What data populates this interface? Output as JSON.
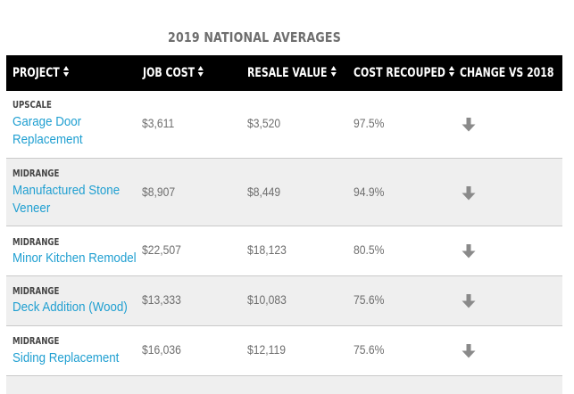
{
  "title": "2019 NATIONAL AVERAGES",
  "columns": [
    {
      "label": "PROJECT",
      "icon": "sort-icon"
    },
    {
      "label": "JOB COST",
      "icon": "sort-icon"
    },
    {
      "label": "RESALE VALUE",
      "icon": "sort-icon"
    },
    {
      "label": "COST RECOUPED",
      "icon": "sort-icon"
    },
    {
      "label": "CHANGE VS 2018"
    }
  ],
  "rows": [
    {
      "tier": "UPSCALE",
      "project": "Garage Door Replacement",
      "job_cost": "$3,611",
      "resale_value": "$3,520",
      "cost_recouped": "97.5%",
      "change": "down-arrow-icon"
    },
    {
      "tier": "MIDRANGE",
      "project": "Manufactured Stone Veneer",
      "job_cost": "$8,907",
      "resale_value": "$8,449",
      "cost_recouped": "94.9%",
      "change": "down-arrow-icon"
    },
    {
      "tier": "MIDRANGE",
      "project": "Minor Kitchen Remodel",
      "job_cost": "$22,507",
      "resale_value": "$18,123",
      "cost_recouped": "80.5%",
      "change": "down-arrow-icon"
    },
    {
      "tier": "MIDRANGE",
      "project": "Deck Addition (Wood)",
      "job_cost": "$13,333",
      "resale_value": "$10,083",
      "cost_recouped": "75.6%",
      "change": "down-arrow-icon"
    },
    {
      "tier": "MIDRANGE",
      "project": "Siding Replacement",
      "job_cost": "$16,036",
      "resale_value": "$12,119",
      "cost_recouped": "75.6%",
      "change": "down-arrow-icon"
    }
  ],
  "colors": {
    "header_bg": "#000000",
    "header_text": "#ffffff",
    "project_link": "#1f9fd1",
    "alt_row_bg": "#efefef",
    "arrow": "#8a8a8a"
  }
}
